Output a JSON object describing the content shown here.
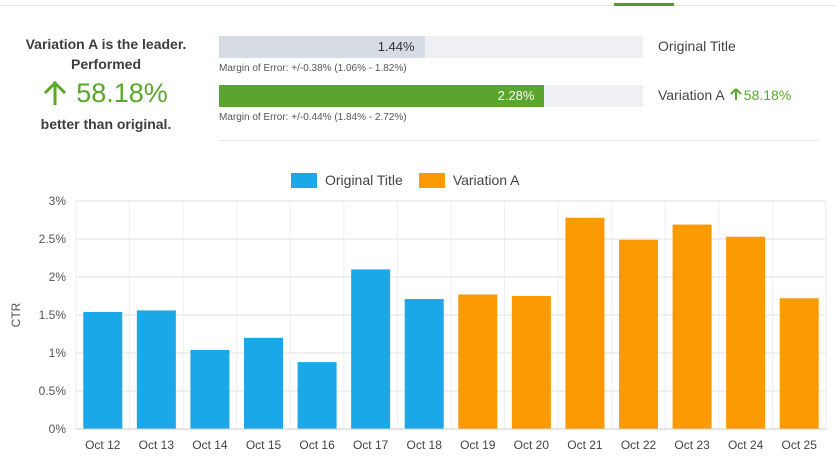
{
  "summary": {
    "line1": "Variation A is the leader.",
    "line2": "Performed",
    "lift": "58.18%",
    "line3": "better than original."
  },
  "results": [
    {
      "name": "Original Title",
      "ctr_label": "1.44%",
      "ctr_value": 1.44,
      "moe": "Margin of Error: +/-0.38% (1.06% - 1.82%)",
      "lift": ""
    },
    {
      "name": "Variation A",
      "ctr_label": "2.28%",
      "ctr_value": 2.28,
      "moe": "Margin of Error: +/-0.44% (1.84% - 2.72%)",
      "lift": "58.18%"
    }
  ],
  "bar_scale_max_percent": 2.97,
  "colors": {
    "original": "#1aa8e9",
    "variation": "#fb9a03",
    "positive": "#58a829"
  },
  "icons": {
    "lift": "arrow-up-icon"
  },
  "chart_data": {
    "type": "bar",
    "categories": [
      "Oct 12",
      "Oct 13",
      "Oct 14",
      "Oct 15",
      "Oct 16",
      "Oct 17",
      "Oct 18",
      "Oct 19",
      "Oct 20",
      "Oct 21",
      "Oct 22",
      "Oct 23",
      "Oct 24",
      "Oct 25"
    ],
    "series": [
      {
        "name": "Original Title",
        "values": [
          1.54,
          1.56,
          1.04,
          1.2,
          0.88,
          2.1,
          1.71,
          null,
          null,
          null,
          null,
          null,
          null,
          null
        ]
      },
      {
        "name": "Variation A",
        "values": [
          null,
          null,
          null,
          null,
          null,
          null,
          null,
          1.77,
          1.75,
          2.78,
          2.49,
          2.69,
          2.53,
          1.72
        ]
      }
    ],
    "ylabel": "CTR",
    "xlabel": "",
    "ylim": [
      0,
      3
    ],
    "yticks": [
      0,
      0.5,
      1,
      1.5,
      2,
      2.5,
      3
    ],
    "ytick_labels": [
      "0%",
      "0.5%",
      "1%",
      "1.5%",
      "2%",
      "2.5%",
      "3%"
    ],
    "grid": true,
    "legend": "top-center"
  }
}
